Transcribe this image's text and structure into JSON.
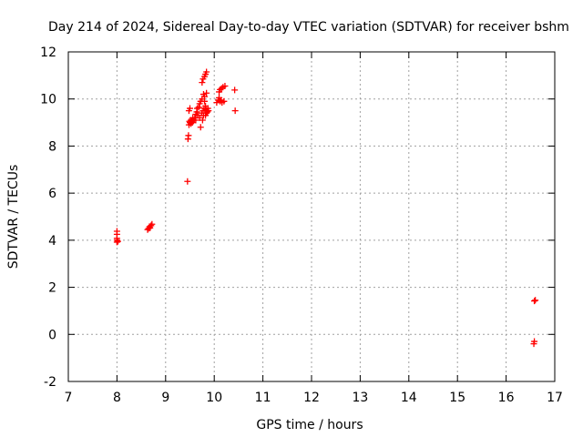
{
  "chart_data": {
    "type": "scatter",
    "title": "Day 214 of 2024, Sidereal Day-to-day VTEC variation (SDTVAR) for receiver bshm",
    "xlabel": "GPS time / hours",
    "ylabel": "SDTVAR / TECUs",
    "xlim": [
      7,
      17
    ],
    "ylim": [
      -2,
      12
    ],
    "xticks": [
      7,
      8,
      9,
      10,
      11,
      12,
      13,
      14,
      15,
      16,
      17
    ],
    "yticks": [
      -2,
      0,
      2,
      4,
      6,
      8,
      10,
      12
    ],
    "grid": true,
    "marker": "+",
    "colors": {
      "series": "#ff0000",
      "grid": "#a0a0a0",
      "axes": "#000000"
    },
    "series": [
      {
        "name": "SDTVAR",
        "x": [
          8.0,
          8.0,
          8.0,
          8.0,
          8.0,
          8.02,
          8.63,
          8.65,
          8.67,
          8.68,
          8.7,
          8.72,
          9.45,
          9.46,
          9.47,
          9.48,
          9.48,
          9.49,
          9.5,
          9.5,
          9.52,
          9.52,
          9.54,
          9.55,
          9.56,
          9.58,
          9.6,
          9.62,
          9.62,
          9.64,
          9.65,
          9.66,
          9.68,
          9.7,
          9.7,
          9.72,
          9.72,
          9.74,
          9.75,
          9.76,
          9.77,
          9.78,
          9.78,
          9.79,
          9.8,
          9.8,
          9.82,
          9.82,
          9.83,
          9.84,
          9.84,
          9.85,
          9.86,
          9.87,
          9.88,
          9.75,
          9.77,
          9.8,
          9.82,
          9.84,
          10.05,
          10.08,
          10.1,
          10.1,
          10.12,
          10.12,
          10.14,
          10.15,
          10.16,
          10.18,
          10.2,
          10.22,
          10.42,
          10.43,
          16.57,
          16.58,
          16.58,
          16.6
        ],
        "y": [
          3.92,
          4.0,
          4.08,
          4.25,
          4.38,
          3.95,
          4.45,
          4.5,
          4.58,
          4.52,
          4.62,
          4.68,
          6.5,
          8.3,
          8.45,
          8.9,
          9.5,
          9.05,
          9.0,
          9.6,
          8.95,
          9.1,
          9.05,
          9.0,
          9.2,
          9.1,
          9.2,
          9.35,
          9.1,
          9.45,
          9.6,
          9.3,
          9.65,
          9.8,
          9.2,
          8.8,
          9.9,
          9.4,
          10.0,
          9.1,
          9.5,
          10.2,
          9.3,
          9.6,
          9.9,
          10.1,
          9.7,
          9.3,
          9.55,
          9.4,
          10.25,
          9.5,
          9.45,
          9.6,
          9.5,
          10.7,
          10.85,
          10.95,
          11.05,
          11.15,
          9.85,
          9.95,
          10.05,
          10.3,
          9.9,
          10.4,
          9.95,
          10.45,
          9.85,
          10.5,
          9.9,
          10.55,
          10.38,
          9.5,
          -0.4,
          -0.3,
          1.42,
          1.45
        ]
      }
    ]
  }
}
